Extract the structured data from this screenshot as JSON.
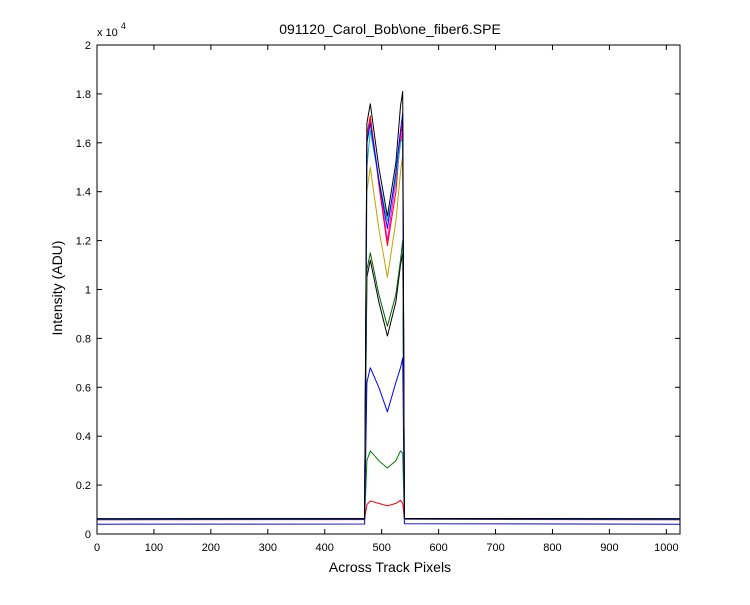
{
  "window": {
    "background": "#ffffff"
  },
  "chart_data": {
    "type": "line",
    "title": "091120_Carol_Bob\\one_fiber6.SPE",
    "xlabel": "Across Track Pixels",
    "ylabel": "Intensity (ADU)",
    "xlim": [
      0,
      1024
    ],
    "ylim": [
      0,
      20000
    ],
    "y_exponent_label": {
      "base": "x 10",
      "exp": "4"
    },
    "xticks": [
      0,
      100,
      200,
      300,
      400,
      500,
      600,
      700,
      800,
      900,
      1000
    ],
    "xtick_labels": [
      "0",
      "100",
      "200",
      "300",
      "400",
      "500",
      "600",
      "700",
      "800",
      "900",
      "1000"
    ],
    "yticks": [
      0,
      2000,
      4000,
      6000,
      8000,
      10000,
      12000,
      14000,
      16000,
      18000,
      20000
    ],
    "ytick_labels": [
      "0",
      "0.2",
      "0.4",
      "0.6",
      "0.8",
      "1",
      "1.2",
      "1.4",
      "1.6",
      "1.8",
      "2"
    ],
    "grid": false,
    "legend": "none",
    "x_common": [
      0,
      470,
      474,
      480,
      495,
      510,
      525,
      533,
      537,
      540,
      1024
    ],
    "series": [
      {
        "color": "#ff0000",
        "values": [
          580,
          590,
          1200,
          1350,
          1250,
          1150,
          1250,
          1380,
          1250,
          600,
          580
        ]
      },
      {
        "color": "#008000",
        "values": [
          590,
          600,
          3000,
          3400,
          3000,
          2700,
          3000,
          3400,
          3300,
          610,
          590
        ]
      },
      {
        "color": "#0000ff",
        "values": [
          400,
          410,
          6200,
          6800,
          6000,
          5000,
          6200,
          6800,
          7200,
          420,
          400
        ]
      },
      {
        "color": "#000000",
        "values": [
          620,
          630,
          10500,
          11200,
          9500,
          8100,
          9500,
          11000,
          11500,
          640,
          620
        ]
      },
      {
        "color": "#006400",
        "values": [
          600,
          610,
          10800,
          11500,
          9800,
          8500,
          9800,
          11200,
          12000,
          620,
          600
        ]
      },
      {
        "color": "#c0a000",
        "values": [
          610,
          620,
          14000,
          15000,
          12500,
          10500,
          12800,
          14800,
          15500,
          630,
          610
        ]
      },
      {
        "color": "#ff00ff",
        "values": [
          610,
          620,
          16000,
          17000,
          14500,
          12000,
          14500,
          16000,
          16500,
          630,
          610
        ]
      },
      {
        "color": "#ff0000",
        "values": [
          615,
          625,
          16300,
          17100,
          14300,
          11800,
          14000,
          16300,
          16800,
          630,
          615
        ]
      },
      {
        "color": "#00bfbf",
        "values": [
          600,
          610,
          15000,
          16500,
          14500,
          12800,
          14500,
          16000,
          16200,
          620,
          600
        ]
      },
      {
        "color": "#0000ff",
        "values": [
          600,
          610,
          16000,
          16800,
          14500,
          12500,
          14800,
          16500,
          17200,
          620,
          600
        ]
      },
      {
        "color": "#000000",
        "values": [
          620,
          630,
          16800,
          17600,
          15000,
          13000,
          15200,
          17500,
          18100,
          640,
          620
        ]
      }
    ]
  }
}
